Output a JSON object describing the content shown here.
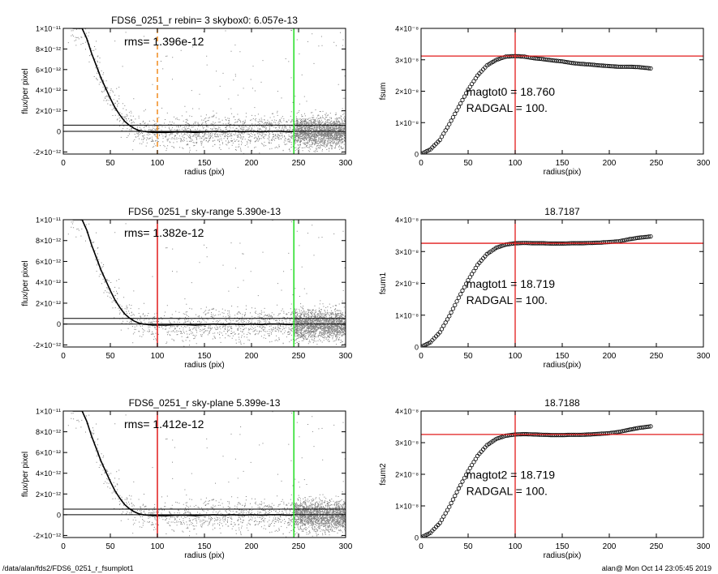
{
  "footer": {
    "path": "/data/alan/fds2/FDS6_0251_r_fsumplot1",
    "stamp": "alan@  Mon Oct 14 23:05:45 2019"
  },
  "colors": {
    "profile": "#000000",
    "scatter": "#808080",
    "orange": "#f08c1e",
    "green": "#22dd22",
    "red": "#e21b1b"
  },
  "chart_data": [
    {
      "type": "scatter",
      "title": "FDS6_0251_r rebin= 3    skybox0:  6.057e-13",
      "annotation": "rms= 1.396e-12",
      "xlabel": "radius (pix)",
      "ylabel": "flux/per pixel",
      "xlim": [
        0,
        300
      ],
      "ylim": [
        -2.2e-12,
        1e-11
      ],
      "xticks": [
        "0",
        "50",
        "100",
        "150",
        "200",
        "250",
        "300"
      ],
      "yticks": [
        {
          "value": 1e-11,
          "label": "1×10⁻¹¹"
        },
        {
          "value": 8e-12,
          "label": "8×10⁻¹²"
        },
        {
          "value": 6e-12,
          "label": "6×10⁻¹²"
        },
        {
          "value": 4e-12,
          "label": "4×10⁻¹²"
        },
        {
          "value": 2e-12,
          "label": "2×10⁻¹²"
        },
        {
          "value": 0,
          "label": "0"
        },
        {
          "value": -2e-12,
          "label": "-2×10⁻¹²"
        }
      ],
      "sky_level": 6.057e-13,
      "vline": {
        "x": 100,
        "style": "dashed",
        "color": "orange"
      },
      "vline2": {
        "x": 245,
        "color": "green"
      },
      "profile": {
        "x": [
          10,
          15,
          20,
          25,
          30,
          35,
          40,
          45,
          50,
          55,
          60,
          65,
          70,
          75,
          80,
          85,
          90,
          95,
          100,
          110,
          120,
          130,
          140,
          150,
          160,
          170,
          180,
          190,
          200,
          210,
          220,
          230,
          240,
          245
        ],
        "y": [
          1e-11,
          1e-11,
          1e-11,
          9e-12,
          7.6e-12,
          6.4e-12,
          5.2e-12,
          4.2e-12,
          3.2e-12,
          2.3e-12,
          1.6e-12,
          1e-12,
          6e-13,
          3e-13,
          1e-13,
          0,
          -5e-14,
          -1e-13,
          -1e-13,
          -1e-13,
          -5e-14,
          -5e-14,
          -1e-13,
          -5e-14,
          0,
          -5e-14,
          0,
          -5e-14,
          0,
          -5e-14,
          0,
          0,
          -5e-14,
          0
        ]
      }
    },
    {
      "type": "line",
      "title": "",
      "xlabel": "radius(pix)",
      "ylabel": "fsum",
      "xlim": [
        0,
        300
      ],
      "ylim": [
        0,
        4e-08
      ],
      "xticks": [
        "0",
        "50",
        "100",
        "150",
        "200",
        "250",
        "300"
      ],
      "yticks": [
        {
          "value": 4e-08,
          "label": "4×10⁻⁸"
        },
        {
          "value": 3e-08,
          "label": "3×10⁻⁸"
        },
        {
          "value": 2e-08,
          "label": "2×10⁻⁸"
        },
        {
          "value": 1e-08,
          "label": "1×10⁻⁸"
        },
        {
          "value": 0,
          "label": "0"
        }
      ],
      "annotation_lines": [
        "magtot0 =  18.760",
        "RADGAL =    100."
      ],
      "hline": {
        "y": 3.12e-08,
        "color": "red"
      },
      "vline": {
        "x": 100,
        "color": "red"
      },
      "curve": {
        "x": [
          0,
          10,
          20,
          30,
          40,
          50,
          60,
          70,
          80,
          90,
          100,
          110,
          120,
          130,
          140,
          150,
          160,
          170,
          180,
          190,
          200,
          210,
          220,
          230,
          240,
          245
        ],
        "y": [
          0,
          1.5e-09,
          4.5e-09,
          9.5e-09,
          1.5e-08,
          2.05e-08,
          2.5e-08,
          2.82e-08,
          3e-08,
          3.1e-08,
          3.12e-08,
          3.1e-08,
          3.05e-08,
          3.02e-08,
          2.98e-08,
          2.95e-08,
          2.9e-08,
          2.87e-08,
          2.85e-08,
          2.82e-08,
          2.8e-08,
          2.78e-08,
          2.78e-08,
          2.77e-08,
          2.74e-08,
          2.72e-08
        ]
      }
    },
    {
      "type": "scatter",
      "title": "FDS6_0251_r sky-range  5.390e-13",
      "annotation": "rms= 1.382e-12",
      "xlabel": "radius (pix)",
      "ylabel": "flux/per pixel",
      "xlim": [
        0,
        300
      ],
      "ylim": [
        -2.2e-12,
        1e-11
      ],
      "xticks": [
        "0",
        "50",
        "100",
        "150",
        "200",
        "250",
        "300"
      ],
      "yticks": [
        {
          "value": 1e-11,
          "label": "1×10⁻¹¹"
        },
        {
          "value": 8e-12,
          "label": "8×10⁻¹²"
        },
        {
          "value": 6e-12,
          "label": "6×10⁻¹²"
        },
        {
          "value": 4e-12,
          "label": "4×10⁻¹²"
        },
        {
          "value": 2e-12,
          "label": "2×10⁻¹²"
        },
        {
          "value": 0,
          "label": "0"
        },
        {
          "value": -2e-12,
          "label": "-2×10⁻¹²"
        }
      ],
      "sky_level": 5.39e-13,
      "vline": {
        "x": 100,
        "style": "solid",
        "color": "red"
      },
      "vline2": {
        "x": 245,
        "color": "green"
      },
      "profile": {
        "x": [
          10,
          15,
          20,
          25,
          30,
          35,
          40,
          45,
          50,
          55,
          60,
          65,
          70,
          75,
          80,
          85,
          90,
          95,
          100,
          110,
          120,
          130,
          140,
          150,
          160,
          170,
          180,
          190,
          200,
          210,
          220,
          230,
          240,
          245
        ],
        "y": [
          1e-11,
          1e-11,
          1e-11,
          9e-12,
          7.6e-12,
          6.4e-12,
          5.2e-12,
          4.2e-12,
          3.2e-12,
          2.3e-12,
          1.6e-12,
          1e-12,
          6e-13,
          3e-13,
          1e-13,
          0,
          -5e-14,
          -1e-13,
          -1e-13,
          -1e-13,
          -5e-14,
          -5e-14,
          -1e-13,
          -5e-14,
          0,
          -5e-14,
          0,
          -5e-14,
          0,
          -5e-14,
          0,
          0,
          -5e-14,
          0
        ]
      }
    },
    {
      "type": "line",
      "title": "18.7187",
      "xlabel": "radius(pix)",
      "ylabel": "fsum1",
      "xlim": [
        0,
        300
      ],
      "ylim": [
        0,
        4e-08
      ],
      "xticks": [
        "0",
        "50",
        "100",
        "150",
        "200",
        "250",
        "300"
      ],
      "yticks": [
        {
          "value": 4e-08,
          "label": "4×10⁻⁸"
        },
        {
          "value": 3e-08,
          "label": "3×10⁻⁸"
        },
        {
          "value": 2e-08,
          "label": "2×10⁻⁸"
        },
        {
          "value": 1e-08,
          "label": "1×10⁻⁸"
        },
        {
          "value": 0,
          "label": "0"
        }
      ],
      "annotation_lines": [
        "magtot1 =  18.719",
        "RADGAL =    100."
      ],
      "hline": {
        "y": 3.26e-08,
        "color": "red"
      },
      "vline": {
        "x": 100,
        "color": "red"
      },
      "curve": {
        "x": [
          0,
          10,
          20,
          30,
          40,
          50,
          60,
          70,
          80,
          90,
          100,
          110,
          120,
          130,
          140,
          150,
          160,
          170,
          180,
          190,
          200,
          210,
          220,
          230,
          240,
          245
        ],
        "y": [
          0,
          1.5e-09,
          4.6e-09,
          9.7e-09,
          1.55e-08,
          2.1e-08,
          2.58e-08,
          2.92e-08,
          3.12e-08,
          3.22e-08,
          3.26e-08,
          3.27e-08,
          3.26e-08,
          3.26e-08,
          3.25e-08,
          3.25e-08,
          3.26e-08,
          3.26e-08,
          3.27e-08,
          3.28e-08,
          3.3e-08,
          3.32e-08,
          3.38e-08,
          3.43e-08,
          3.46e-08,
          3.48e-08
        ]
      }
    },
    {
      "type": "scatter",
      "title": "FDS6_0251_r sky-plane  5.399e-13",
      "annotation": "rms= 1.412e-12",
      "xlabel": "radius (pix)",
      "ylabel": "flux/per pixel",
      "xlim": [
        0,
        300
      ],
      "ylim": [
        -2.2e-12,
        1e-11
      ],
      "xticks": [
        "0",
        "50",
        "100",
        "150",
        "200",
        "250",
        "300"
      ],
      "yticks": [
        {
          "value": 1e-11,
          "label": "1×10⁻¹¹"
        },
        {
          "value": 8e-12,
          "label": "8×10⁻¹²"
        },
        {
          "value": 6e-12,
          "label": "6×10⁻¹²"
        },
        {
          "value": 4e-12,
          "label": "4×10⁻¹²"
        },
        {
          "value": 2e-12,
          "label": "2×10⁻¹²"
        },
        {
          "value": 0,
          "label": "0"
        },
        {
          "value": -2e-12,
          "label": "-2×10⁻¹²"
        }
      ],
      "sky_level": 5.399e-13,
      "vline": {
        "x": 100,
        "style": "solid",
        "color": "red"
      },
      "vline2": {
        "x": 245,
        "color": "green"
      },
      "profile": {
        "x": [
          10,
          15,
          20,
          25,
          30,
          35,
          40,
          45,
          50,
          55,
          60,
          65,
          70,
          75,
          80,
          85,
          90,
          95,
          100,
          110,
          120,
          130,
          140,
          150,
          160,
          170,
          180,
          190,
          200,
          210,
          220,
          230,
          240,
          245
        ],
        "y": [
          1e-11,
          1e-11,
          1e-11,
          9e-12,
          7.6e-12,
          6.4e-12,
          5.2e-12,
          4.2e-12,
          3.2e-12,
          2.3e-12,
          1.6e-12,
          1e-12,
          6e-13,
          3e-13,
          1e-13,
          0,
          -5e-14,
          -1e-13,
          -1e-13,
          -1e-13,
          -5e-14,
          -5e-14,
          -1e-13,
          -5e-14,
          0,
          -5e-14,
          0,
          -5e-14,
          0,
          -5e-14,
          0,
          0,
          -5e-14,
          0
        ]
      }
    },
    {
      "type": "line",
      "title": "18.7188",
      "xlabel": "radius(pix)",
      "ylabel": "fsum2",
      "xlim": [
        0,
        300
      ],
      "ylim": [
        0,
        4e-08
      ],
      "xticks": [
        "0",
        "50",
        "100",
        "150",
        "200",
        "250",
        "300"
      ],
      "yticks": [
        {
          "value": 4e-08,
          "label": "4×10⁻⁸"
        },
        {
          "value": 3e-08,
          "label": "3×10⁻⁸"
        },
        {
          "value": 2e-08,
          "label": "2×10⁻⁸"
        },
        {
          "value": 1e-08,
          "label": "1×10⁻⁸"
        },
        {
          "value": 0,
          "label": "0"
        }
      ],
      "annotation_lines": [
        "magtot2 =  18.719",
        "RADGAL =    100."
      ],
      "hline": {
        "y": 3.26e-08,
        "color": "red"
      },
      "vline": {
        "x": 100,
        "color": "red"
      },
      "curve": {
        "x": [
          0,
          10,
          20,
          30,
          40,
          50,
          60,
          70,
          80,
          90,
          100,
          110,
          120,
          130,
          140,
          150,
          160,
          170,
          180,
          190,
          200,
          210,
          220,
          230,
          240,
          245
        ],
        "y": [
          0,
          1.5e-09,
          4.6e-09,
          9.7e-09,
          1.55e-08,
          2.1e-08,
          2.58e-08,
          2.92e-08,
          3.12e-08,
          3.22e-08,
          3.26e-08,
          3.27e-08,
          3.26e-08,
          3.25e-08,
          3.24e-08,
          3.24e-08,
          3.25e-08,
          3.25e-08,
          3.26e-08,
          3.28e-08,
          3.3e-08,
          3.34e-08,
          3.4e-08,
          3.46e-08,
          3.5e-08,
          3.52e-08
        ]
      }
    }
  ]
}
